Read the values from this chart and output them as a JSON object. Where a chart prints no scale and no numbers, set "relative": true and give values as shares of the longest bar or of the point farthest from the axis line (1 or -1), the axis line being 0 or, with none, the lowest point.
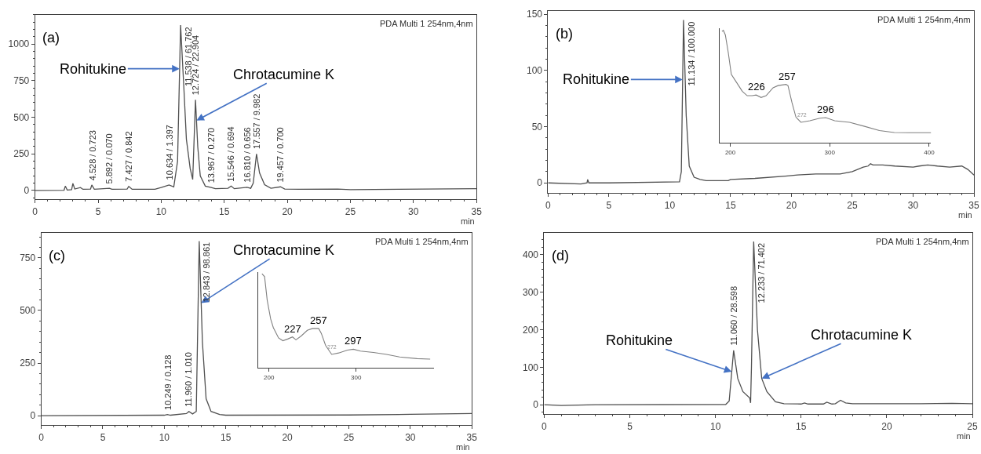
{
  "chart_data": [
    {
      "type": "line",
      "title": "(a)",
      "xlabel": "min",
      "xlim": [
        0,
        35
      ],
      "xticks": [
        0,
        5,
        10,
        15,
        20,
        25,
        30,
        35
      ],
      "ylim": [
        -60,
        1200
      ],
      "yticks": [
        0,
        250,
        500,
        750,
        1000
      ],
      "x": [
        0,
        2.3,
        2.4,
        2.55,
        2.9,
        3.0,
        3.15,
        3.6,
        3.8,
        4.4,
        4.5,
        4.7,
        5.9,
        6.1,
        7.3,
        7.43,
        7.7,
        9.5,
        10.0,
        10.63,
        11.0,
        11.3,
        11.54,
        11.8,
        12.0,
        12.3,
        12.5,
        12.72,
        12.9,
        13.1,
        13.5,
        13.97,
        14.3,
        15.3,
        15.55,
        15.8,
        16.81,
        17.1,
        17.3,
        17.56,
        17.8,
        18.2,
        18.7,
        19.46,
        19.8,
        21,
        24,
        25,
        28.8,
        35
      ],
      "series": [
        {
          "color": "#505050",
          "values": [
            0,
            2,
            30,
            3,
            5,
            48,
            10,
            20,
            8,
            10,
            38,
            8,
            15,
            8,
            10,
            28,
            8,
            8,
            20,
            38,
            25,
            200,
            1130,
            700,
            350,
            150,
            75,
            620,
            300,
            100,
            30,
            20,
            12,
            15,
            30,
            12,
            22,
            15,
            50,
            250,
            120,
            40,
            15,
            25,
            10,
            8,
            10,
            6,
            8,
            12
          ]
        }
      ],
      "annotations": [
        "PDA Multi 1 254nm,4nm",
        {
          "text": "Rohitukine",
          "x": 11.46,
          "y": 832
        },
        {
          "text": "Chrotacumine K",
          "x": 12.8,
          "y": 478
        },
        {
          "text": "4.528 / 0.723",
          "x": 4.528,
          "y": 38
        },
        {
          "text": "5.892 / 0.070",
          "x": 5.892,
          "y": 15
        },
        {
          "text": "7.427 / 0.842",
          "x": 7.427,
          "y": 28
        },
        {
          "text": "10.634 / 1.397",
          "x": 10.634,
          "y": 38
        },
        {
          "text": "11.538 / 61.762",
          "x": 11.538,
          "y": 1130
        },
        {
          "text": "12.724 / 22.904",
          "x": 12.724,
          "y": 620
        },
        {
          "text": "13.967 / 0.270",
          "x": 13.967,
          "y": 20
        },
        {
          "text": "15.546 / 0.694",
          "x": 15.546,
          "y": 30
        },
        {
          "text": "16.810 / 0.656",
          "x": 16.81,
          "y": 22
        },
        {
          "text": "17.557 / 9.982",
          "x": 17.557,
          "y": 250
        },
        {
          "text": "19.457 / 0.700",
          "x": 19.457,
          "y": 25
        }
      ]
    },
    {
      "type": "line",
      "title": "(b)",
      "xlabel": "min",
      "xlim": [
        0,
        35
      ],
      "xticks": [
        0,
        5,
        10,
        15,
        20,
        25,
        30,
        35
      ],
      "ylim": [
        -9,
        153
      ],
      "yticks": [
        0,
        50,
        100,
        150
      ],
      "x": [
        0,
        2.7,
        3.2,
        3.25,
        3.35,
        5,
        10.8,
        10.95,
        11.13,
        11.35,
        11.6,
        12,
        12.5,
        13,
        14.8,
        15,
        17,
        19.5,
        20.5,
        22,
        24,
        25,
        25.9,
        26.3,
        26.5,
        26.7,
        27.5,
        28.5,
        30,
        30.5,
        31.2,
        32,
        33,
        34,
        34.5,
        35
      ],
      "series": [
        {
          "color": "#505050",
          "values": [
            0,
            -1,
            0,
            3,
            0,
            0,
            1,
            10,
            145,
            60,
            15,
            5,
            3,
            2,
            2,
            3,
            4,
            6,
            7,
            8,
            8,
            10,
            14,
            15,
            17,
            16,
            16,
            15,
            14,
            15,
            16,
            15,
            14,
            15,
            12,
            7
          ]
        }
      ],
      "annotations": [
        "PDA Multi 1 254nm,4nm",
        {
          "text": "Rohitukine",
          "x": 11.06,
          "y": 92
        },
        {
          "text": "11.134 / 100.000",
          "x": 11.134,
          "y": 145
        }
      ]
    },
    {
      "type": "line",
      "relative": true,
      "tick_labels": "x",
      "xlim": [
        189,
        402
      ],
      "xticks": [
        200,
        300,
        400
      ],
      "x": [
        191.6,
        193,
        195,
        198,
        201,
        205,
        212,
        217,
        222,
        226,
        231,
        236,
        243,
        248,
        256,
        258,
        262,
        266,
        271,
        280,
        290,
        296,
        305,
        320,
        335,
        350,
        365,
        380,
        402
      ],
      "series": [
        {
          "color": "#808080",
          "values": [
            0.99,
            1.0,
            0.96,
            0.8,
            0.61,
            0.555,
            0.46,
            0.42,
            0.42,
            0.426,
            0.404,
            0.42,
            0.49,
            0.51,
            0.52,
            0.51,
            0.36,
            0.23,
            0.184,
            0.198,
            0.22,
            0.225,
            0.198,
            0.184,
            0.148,
            0.11,
            0.093,
            0.091,
            0.091
          ]
        }
      ],
      "annotations": [
        {
          "text": "226",
          "x": 226,
          "y": 0.426
        },
        {
          "text": "257",
          "x": 257,
          "y": 0.52
        },
        {
          "text": "296",
          "x": 296,
          "y": 0.225
        },
        {
          "text": "272",
          "x": 272,
          "y": 0.184
        }
      ]
    },
    {
      "type": "line",
      "title": "(c)",
      "xlabel": "min",
      "xlim": [
        0,
        35
      ],
      "xticks": [
        0,
        5,
        10,
        15,
        20,
        25,
        30,
        35
      ],
      "ylim": [
        -45,
        869
      ],
      "yticks": [
        0,
        250,
        500,
        750
      ],
      "x": [
        0,
        10,
        10.25,
        10.5,
        11.8,
        12.0,
        12.3,
        12.6,
        12.84,
        13.1,
        13.4,
        13.8,
        14.5,
        15,
        25,
        30,
        35
      ],
      "series": [
        {
          "color": "#505050",
          "values": [
            0,
            2,
            5,
            2,
            10,
            20,
            8,
            20,
            830,
            350,
            80,
            20,
            5,
            2,
            3,
            6,
            10
          ]
        }
      ],
      "annotations": [
        "PDA Multi 1 254nm,4nm",
        {
          "text": "Chrotacumine K",
          "x": 13.0,
          "y": 535
        },
        {
          "text": "10.249 / 0.128",
          "x": 10.249,
          "y": 5
        },
        {
          "text": "11.960 / 1.010",
          "x": 11.96,
          "y": 20
        },
        {
          "text": "12.843 / 98.861",
          "x": 12.843,
          "y": 830
        }
      ]
    },
    {
      "type": "line",
      "relative": true,
      "tick_labels": "x",
      "xlim": [
        188,
        389
      ],
      "xticks": [
        200,
        300
      ],
      "x": [
        192,
        195,
        198,
        202,
        205,
        211,
        216,
        222,
        227,
        231,
        237,
        244,
        250,
        257,
        260,
        265,
        272,
        280,
        290,
        297,
        305,
        320,
        335,
        350,
        370,
        385
      ],
      "series": [
        {
          "color": "#808080",
          "values": [
            1.0,
            0.97,
            0.72,
            0.52,
            0.43,
            0.32,
            0.29,
            0.31,
            0.33,
            0.3,
            0.34,
            0.4,
            0.42,
            0.42,
            0.37,
            0.24,
            0.145,
            0.16,
            0.19,
            0.2,
            0.18,
            0.165,
            0.145,
            0.118,
            0.1,
            0.095
          ]
        }
      ],
      "annotations": [
        {
          "text": "227",
          "x": 227,
          "y": 0.33
        },
        {
          "text": "257",
          "x": 257,
          "y": 0.42
        },
        {
          "text": "297",
          "x": 297,
          "y": 0.2
        },
        {
          "text": "272",
          "x": 272,
          "y": 0.145
        }
      ]
    },
    {
      "type": "line",
      "title": "(d)",
      "xlabel": "min",
      "xlim": [
        0,
        25
      ],
      "xticks": [
        0,
        5,
        10,
        15,
        20,
        25
      ],
      "ylim": [
        -25,
        458
      ],
      "yticks": [
        0,
        100,
        200,
        300,
        400
      ],
      "x": [
        0,
        1,
        3,
        10.6,
        10.8,
        11.06,
        11.3,
        11.6,
        12.0,
        12.05,
        12.1,
        12.23,
        12.45,
        12.7,
        13.0,
        13.5,
        14,
        15,
        15.2,
        15.4,
        16.3,
        16.5,
        16.8,
        17.0,
        17.3,
        17.6,
        18,
        22,
        23.8,
        25
      ],
      "series": [
        {
          "color": "#505050",
          "values": [
            0,
            -2,
            0,
            1,
            10,
            145,
            70,
            35,
            18,
            5,
            100,
            435,
            200,
            70,
            35,
            8,
            3,
            2,
            5,
            2,
            2,
            7,
            2,
            3,
            12,
            5,
            3,
            3,
            4,
            3
          ]
        }
      ],
      "annotations": [
        "PDA Multi 1 254nm,4nm",
        {
          "text": "Rohitukine",
          "x": 10.95,
          "y": 88
        },
        {
          "text": "Chrotacumine K",
          "x": 12.7,
          "y": 70
        },
        {
          "text": "11.060 / 28.598",
          "x": 11.06,
          "y": 145
        },
        {
          "text": "12.233 / 71.402",
          "x": 12.233,
          "y": 435
        }
      ]
    }
  ]
}
